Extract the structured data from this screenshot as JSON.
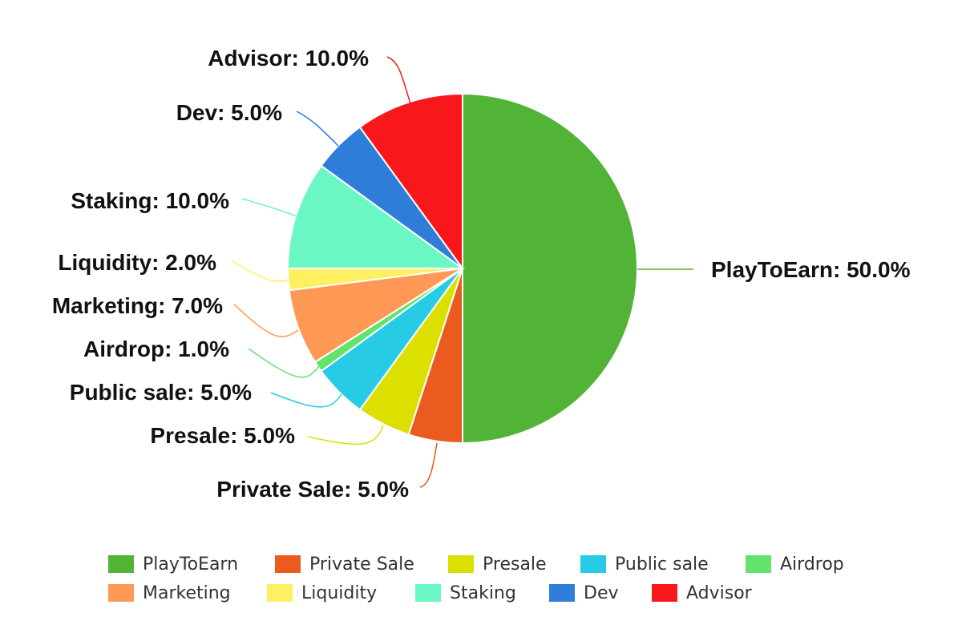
{
  "chart_data": {
    "type": "pie",
    "title": "",
    "slices": [
      {
        "label": "PlayToEarn",
        "value": 50.0,
        "display": "PlayToEarn: 50.0%",
        "color": "#52b436"
      },
      {
        "label": "Private Sale",
        "value": 5.0,
        "display": "Private Sale: 5.0%",
        "color": "#eb5a1f"
      },
      {
        "label": "Presale",
        "value": 5.0,
        "display": "Presale: 5.0%",
        "color": "#dbe000"
      },
      {
        "label": "Public sale",
        "value": 5.0,
        "display": "Public sale: 5.0%",
        "color": "#27cbe5"
      },
      {
        "label": "Airdrop",
        "value": 1.0,
        "display": "Airdrop: 1.0%",
        "color": "#63e26c"
      },
      {
        "label": "Marketing",
        "value": 7.0,
        "display": "Marketing: 7.0%",
        "color": "#ff9955"
      },
      {
        "label": "Liquidity",
        "value": 2.0,
        "display": "Liquidity: 2.0%",
        "color": "#fff061"
      },
      {
        "label": "Staking",
        "value": 10.0,
        "display": "Staking: 10.0%",
        "color": "#6af7c3"
      },
      {
        "label": "Dev",
        "value": 5.0,
        "display": "Dev: 5.0%",
        "color": "#2e7ed9"
      },
      {
        "label": "Advisor",
        "value": 10.0,
        "display": "Advisor: 10.0%",
        "color": "#f8171a"
      }
    ],
    "legend": {
      "position": "bottom",
      "items": [
        "PlayToEarn",
        "Private Sale",
        "Presale",
        "Public sale",
        "Airdrop",
        "Marketing",
        "Liquidity",
        "Staking",
        "Dev",
        "Advisor"
      ]
    }
  }
}
